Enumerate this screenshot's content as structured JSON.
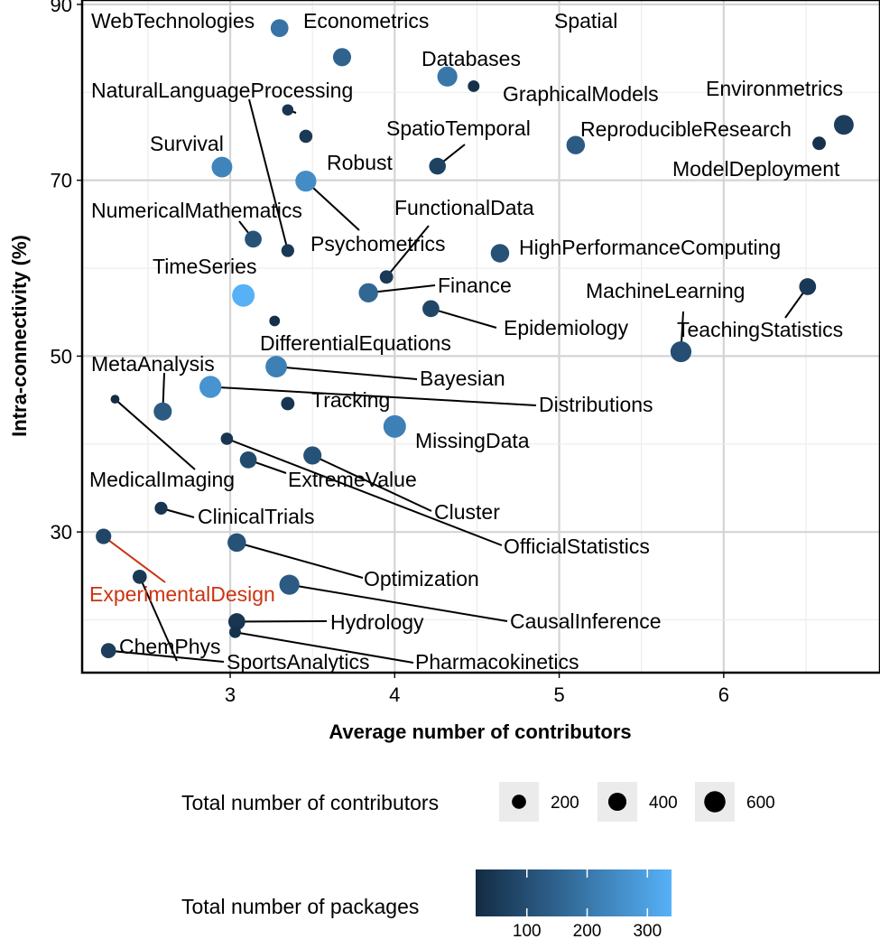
{
  "chart_data": {
    "type": "scatter",
    "title": "",
    "xlabel": "Average number of contributors",
    "ylabel": "Intra-connectivity (%)",
    "xlim": [
      2.1,
      6.95
    ],
    "ylim": [
      14,
      90.5
    ],
    "xticks": [
      3,
      4,
      5,
      6
    ],
    "yticks": [
      30,
      50,
      70,
      90
    ],
    "grid": true,
    "highlight": {
      "label": "ExperimentalDesign",
      "color": "#cc3311"
    },
    "colorscale": {
      "low": "#132b43",
      "high": "#56b1f7",
      "min": 15,
      "max": 340
    },
    "points": [
      {
        "label": "WebTechnologies",
        "x": 3.3,
        "y": 87.3,
        "size": 380,
        "packages": 190
      },
      {
        "label": "Econometrics",
        "x": 3.68,
        "y": 84.0,
        "size": 400,
        "packages": 150
      },
      {
        "label": "Spatial",
        "x": 4.32,
        "y": 81.8,
        "size": 520,
        "packages": 200
      },
      {
        "label": "Databases",
        "x": 3.35,
        "y": 78.0,
        "size": 100,
        "packages": 40
      },
      {
        "label": "NaturalLanguageProcessing",
        "x": 3.35,
        "y": 62.0,
        "size": 150,
        "packages": 50
      },
      {
        "label": "GraphicalModels",
        "x": 4.48,
        "y": 80.7,
        "size": 110,
        "packages": 30
      },
      {
        "label": "Environmetrics",
        "x": 5.1,
        "y": 74.0,
        "size": 420,
        "packages": 130
      },
      {
        "label": "ReproducibleResearch",
        "x": 6.73,
        "y": 76.3,
        "size": 500,
        "packages": 60
      },
      {
        "label": "ModelDeployment",
        "x": 6.58,
        "y": 74.2,
        "size": 170,
        "packages": 30
      },
      {
        "label": "SpatioTemporal",
        "x": 4.26,
        "y": 71.6,
        "size": 320,
        "packages": 70
      },
      {
        "label": "Survival",
        "x": 2.95,
        "y": 71.5,
        "size": 560,
        "packages": 230
      },
      {
        "label": "Robust",
        "x": 3.46,
        "y": 75.0,
        "size": 160,
        "packages": 50
      },
      {
        "label": "Psychometrics",
        "x": 3.46,
        "y": 69.9,
        "size": 580,
        "packages": 250
      },
      {
        "label": "NumericalMathematics",
        "x": 3.14,
        "y": 63.3,
        "size": 330,
        "packages": 110
      },
      {
        "label": "FunctionalData",
        "x": 3.95,
        "y": 59.0,
        "size": 170,
        "packages": 50
      },
      {
        "label": "HighPerformanceComputing",
        "x": 4.64,
        "y": 61.7,
        "size": 420,
        "packages": 110
      },
      {
        "label": "TimeSeries",
        "x": 3.08,
        "y": 56.9,
        "size": 700,
        "packages": 340
      },
      {
        "label": "Finance",
        "x": 3.84,
        "y": 57.2,
        "size": 470,
        "packages": 160
      },
      {
        "label": "Epidemiology",
        "x": 4.22,
        "y": 55.4,
        "size": 330,
        "packages": 80
      },
      {
        "label": "MachineLearning",
        "x": 5.74,
        "y": 50.5,
        "size": 580,
        "packages": 100
      },
      {
        "label": "TeachingStatistics",
        "x": 6.51,
        "y": 57.9,
        "size": 330,
        "packages": 50
      },
      {
        "label": "DifferentialEquations",
        "x": 3.27,
        "y": 54.0,
        "size": 80,
        "packages": 25
      },
      {
        "label": "Bayesian",
        "x": 3.28,
        "y": 48.8,
        "size": 620,
        "packages": 220
      },
      {
        "label": "Distributions",
        "x": 2.88,
        "y": 46.5,
        "size": 660,
        "packages": 270
      },
      {
        "label": "MetaAnalysis",
        "x": 2.59,
        "y": 43.7,
        "size": 400,
        "packages": 130
      },
      {
        "label": "Tracking",
        "x": 3.35,
        "y": 44.6,
        "size": 170,
        "packages": 40
      },
      {
        "label": "MedicalImaging",
        "x": 2.3,
        "y": 45.1,
        "size": 40,
        "packages": 20
      },
      {
        "label": "MissingData",
        "x": 4.0,
        "y": 42.0,
        "size": 700,
        "packages": 220
      },
      {
        "label": "OfficialStatistics",
        "x": 2.98,
        "y": 40.6,
        "size": 130,
        "packages": 40
      },
      {
        "label": "ExtremeValue",
        "x": 3.11,
        "y": 38.2,
        "size": 330,
        "packages": 90
      },
      {
        "label": "Cluster",
        "x": 3.5,
        "y": 38.7,
        "size": 400,
        "packages": 110
      },
      {
        "label": "ClinicalTrials",
        "x": 2.58,
        "y": 32.7,
        "size": 150,
        "packages": 40
      },
      {
        "label": "ExperimentalDesign",
        "x": 2.23,
        "y": 29.5,
        "size": 260,
        "packages": 80
      },
      {
        "label": "Optimization",
        "x": 3.04,
        "y": 28.8,
        "size": 420,
        "packages": 110
      },
      {
        "label": "ChemPhys",
        "x": 2.45,
        "y": 24.9,
        "size": 200,
        "packages": 50
      },
      {
        "label": "CausalInference",
        "x": 3.36,
        "y": 24.0,
        "size": 520,
        "packages": 130
      },
      {
        "label": "Hydrology",
        "x": 3.04,
        "y": 19.8,
        "size": 330,
        "packages": 40
      },
      {
        "label": "Pharmacokinetics",
        "x": 3.03,
        "y": 18.6,
        "size": 110,
        "packages": 30
      },
      {
        "label": "SportsAnalytics",
        "x": 2.26,
        "y": 16.5,
        "size": 240,
        "packages": 60
      }
    ],
    "legend": {
      "size_title": "Total number of contributors",
      "size_breaks": [
        200,
        400,
        600
      ],
      "color_title": "Total number of packages",
      "color_breaks": [
        100,
        200,
        300
      ]
    }
  }
}
